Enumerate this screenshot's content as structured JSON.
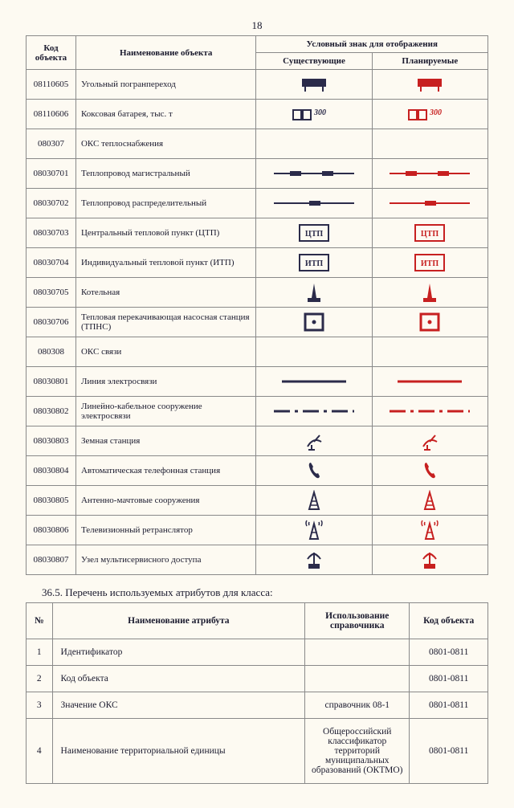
{
  "page_number": "18",
  "table1": {
    "headers": {
      "code": "Код объекта",
      "name": "Наименование объекта",
      "symbol_group": "Условный знак для отображения",
      "existing": "Существующие",
      "planned": "Планируемые"
    },
    "colors": {
      "existing": "#2b2b4a",
      "planned": "#c72020"
    },
    "rows": [
      {
        "code": "08110605",
        "name": "Угольный погранпереход",
        "sym": "border-crossing"
      },
      {
        "code": "08110606",
        "name": "Коксовая батарея, тыс. т",
        "sym": "coke-battery",
        "label": "300"
      },
      {
        "code": "080307",
        "name": "ОКС теплоснабжения",
        "sym": "none"
      },
      {
        "code": "08030701",
        "name": "Теплопровод магистральный",
        "sym": "heat-main"
      },
      {
        "code": "08030702",
        "name": "Теплопровод распределительный",
        "sym": "heat-dist"
      },
      {
        "code": "08030703",
        "name": "Центральный тепловой пункт (ЦТП)",
        "sym": "box-label",
        "label": "ЦТП"
      },
      {
        "code": "08030704",
        "name": "Индивидуальный тепловой пункт (ИТП)",
        "sym": "box-label",
        "label": "ИТП"
      },
      {
        "code": "08030705",
        "name": "Котельная",
        "sym": "boiler"
      },
      {
        "code": "08030706",
        "name": "Тепловая перекачивающая насосная станция (ТПНС)",
        "sym": "box-dot"
      },
      {
        "code": "080308",
        "name": "ОКС связи",
        "sym": "none"
      },
      {
        "code": "08030801",
        "name": "Линия электросвязи",
        "sym": "line-solid"
      },
      {
        "code": "08030802",
        "name": "Линейно-кабельное сооружение электросвязи",
        "sym": "line-dash"
      },
      {
        "code": "08030803",
        "name": "Земная станция",
        "sym": "sat-dish"
      },
      {
        "code": "08030804",
        "name": "Автоматическая телефонная станция",
        "sym": "phone"
      },
      {
        "code": "08030805",
        "name": "Антенно-мачтовые сооружения",
        "sym": "mast"
      },
      {
        "code": "08030806",
        "name": "Телевизионный ретранслятор",
        "sym": "tv-tower"
      },
      {
        "code": "08030807",
        "name": "Узел мультисервисного доступа",
        "sym": "multi-node"
      }
    ]
  },
  "section_title": "36.5.   Перечень используемых атрибутов для класса:",
  "table2": {
    "headers": {
      "num": "№",
      "name": "Наименование атрибута",
      "ref": "Использование справочника",
      "code": "Код объекта"
    },
    "rows": [
      {
        "num": "1",
        "name": "Идентификатор",
        "ref": "",
        "code": "0801-0811"
      },
      {
        "num": "2",
        "name": "Код объекта",
        "ref": "",
        "code": "0801-0811"
      },
      {
        "num": "3",
        "name": "Значение ОКС",
        "ref": "справочник 08-1",
        "code": "0801-0811"
      },
      {
        "num": "4",
        "name": "Наименование территориальной единицы",
        "ref": "Общероссийский классификатор территорий муниципальных образований (ОКТМО)",
        "code": "0801-0811"
      }
    ]
  }
}
